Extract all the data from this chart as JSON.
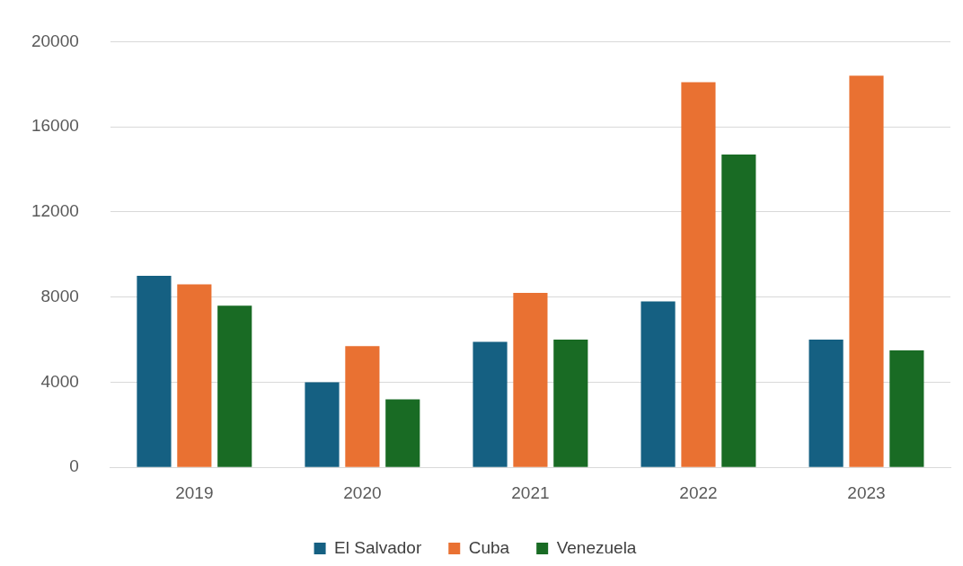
{
  "chart_data": {
    "type": "bar",
    "categories": [
      "2019",
      "2020",
      "2021",
      "2022",
      "2023"
    ],
    "series": [
      {
        "name": "El Salvador",
        "color": "#156082",
        "values": [
          9000,
          4000,
          5900,
          7800,
          6000
        ]
      },
      {
        "name": "Cuba",
        "color": "#e97132",
        "values": [
          8600,
          5700,
          8200,
          18100,
          18400
        ]
      },
      {
        "name": "Venezuela",
        "color": "#196b24",
        "values": [
          7600,
          3200,
          6000,
          14700,
          5500
        ]
      }
    ],
    "ylim": [
      0,
      20000
    ],
    "yticks": [
      0,
      4000,
      8000,
      12000,
      16000,
      20000
    ],
    "grid": "y",
    "legend": "bottom"
  }
}
